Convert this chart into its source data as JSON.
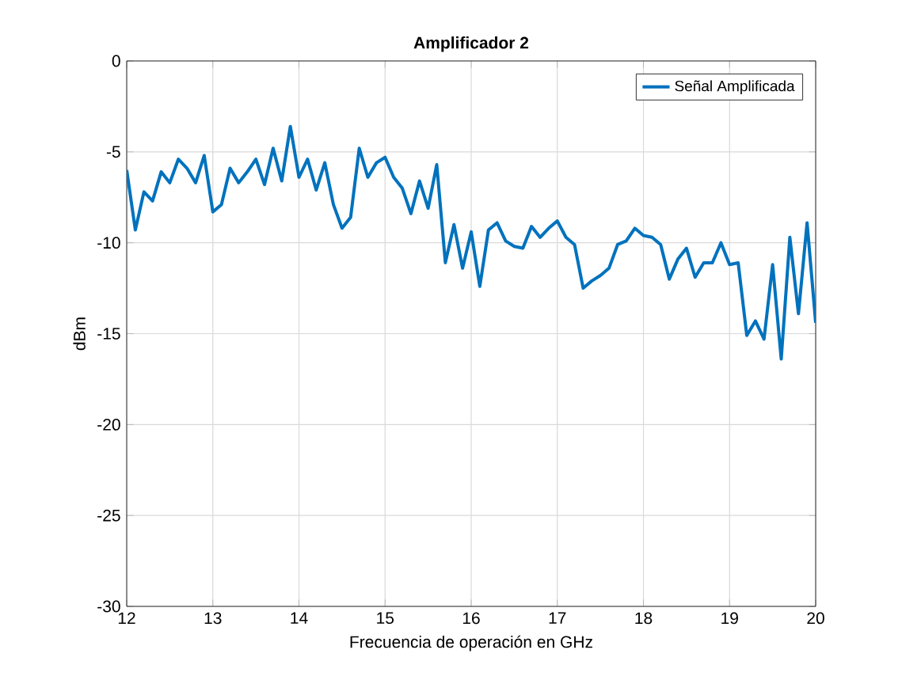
{
  "chart_data": {
    "type": "line",
    "title": "Amplificador 2",
    "xlabel": "Frecuencia de operación en GHz",
    "ylabel": "dBm",
    "x": [
      12.0,
      12.1,
      12.2,
      12.3,
      12.4,
      12.5,
      12.6,
      12.7,
      12.8,
      12.9,
      13.0,
      13.1,
      13.2,
      13.3,
      13.4,
      13.5,
      13.6,
      13.7,
      13.8,
      13.9,
      14.0,
      14.1,
      14.2,
      14.3,
      14.4,
      14.5,
      14.6,
      14.7,
      14.8,
      14.9,
      15.0,
      15.1,
      15.2,
      15.3,
      15.4,
      15.5,
      15.6,
      15.7,
      15.8,
      15.9,
      16.0,
      16.1,
      16.2,
      16.3,
      16.4,
      16.5,
      16.6,
      16.7,
      16.8,
      16.9,
      17.0,
      17.1,
      17.2,
      17.3,
      17.4,
      17.5,
      17.6,
      17.7,
      17.8,
      17.9,
      18.0,
      18.1,
      18.2,
      18.3,
      18.4,
      18.5,
      18.6,
      18.7,
      18.8,
      18.9,
      19.0,
      19.1,
      19.2,
      19.3,
      19.4,
      19.5,
      19.6,
      19.7,
      19.8,
      19.9,
      20.0
    ],
    "series": [
      {
        "name": "Señal Amplificada",
        "color": "#0072bd",
        "values": [
          -6.0,
          -9.3,
          -7.2,
          -7.7,
          -6.1,
          -6.7,
          -5.4,
          -5.9,
          -6.7,
          -5.2,
          -8.3,
          -7.9,
          -5.9,
          -6.7,
          -6.1,
          -5.4,
          -6.8,
          -4.8,
          -6.6,
          -3.6,
          -6.4,
          -5.4,
          -7.1,
          -5.6,
          -7.9,
          -9.2,
          -8.6,
          -4.8,
          -6.4,
          -5.6,
          -5.3,
          -6.4,
          -7.0,
          -8.4,
          -6.6,
          -8.1,
          -5.7,
          -11.1,
          -9.0,
          -11.4,
          -9.4,
          -12.4,
          -9.3,
          -8.9,
          -9.9,
          -10.2,
          -10.3,
          -9.1,
          -9.7,
          -9.2,
          -8.8,
          -9.7,
          -10.1,
          -12.5,
          -12.1,
          -11.8,
          -11.4,
          -10.1,
          -9.9,
          -9.2,
          -9.6,
          -9.7,
          -10.1,
          -12.0,
          -10.9,
          -10.3,
          -11.9,
          -11.1,
          -11.1,
          -10.0,
          -11.2,
          -11.1,
          -15.1,
          -14.3,
          -15.3,
          -11.2,
          -16.4,
          -9.7,
          -13.9,
          -8.9,
          -14.4
        ]
      }
    ],
    "xlim": [
      12,
      20
    ],
    "xticks": [
      12,
      13,
      14,
      15,
      16,
      17,
      18,
      19,
      20
    ],
    "ylim": [
      -30,
      0
    ],
    "yticks": [
      -30,
      -25,
      -20,
      -15,
      -10,
      -5,
      0
    ],
    "grid": true,
    "legend": "top right",
    "line_style": "solid",
    "marker": "none"
  }
}
